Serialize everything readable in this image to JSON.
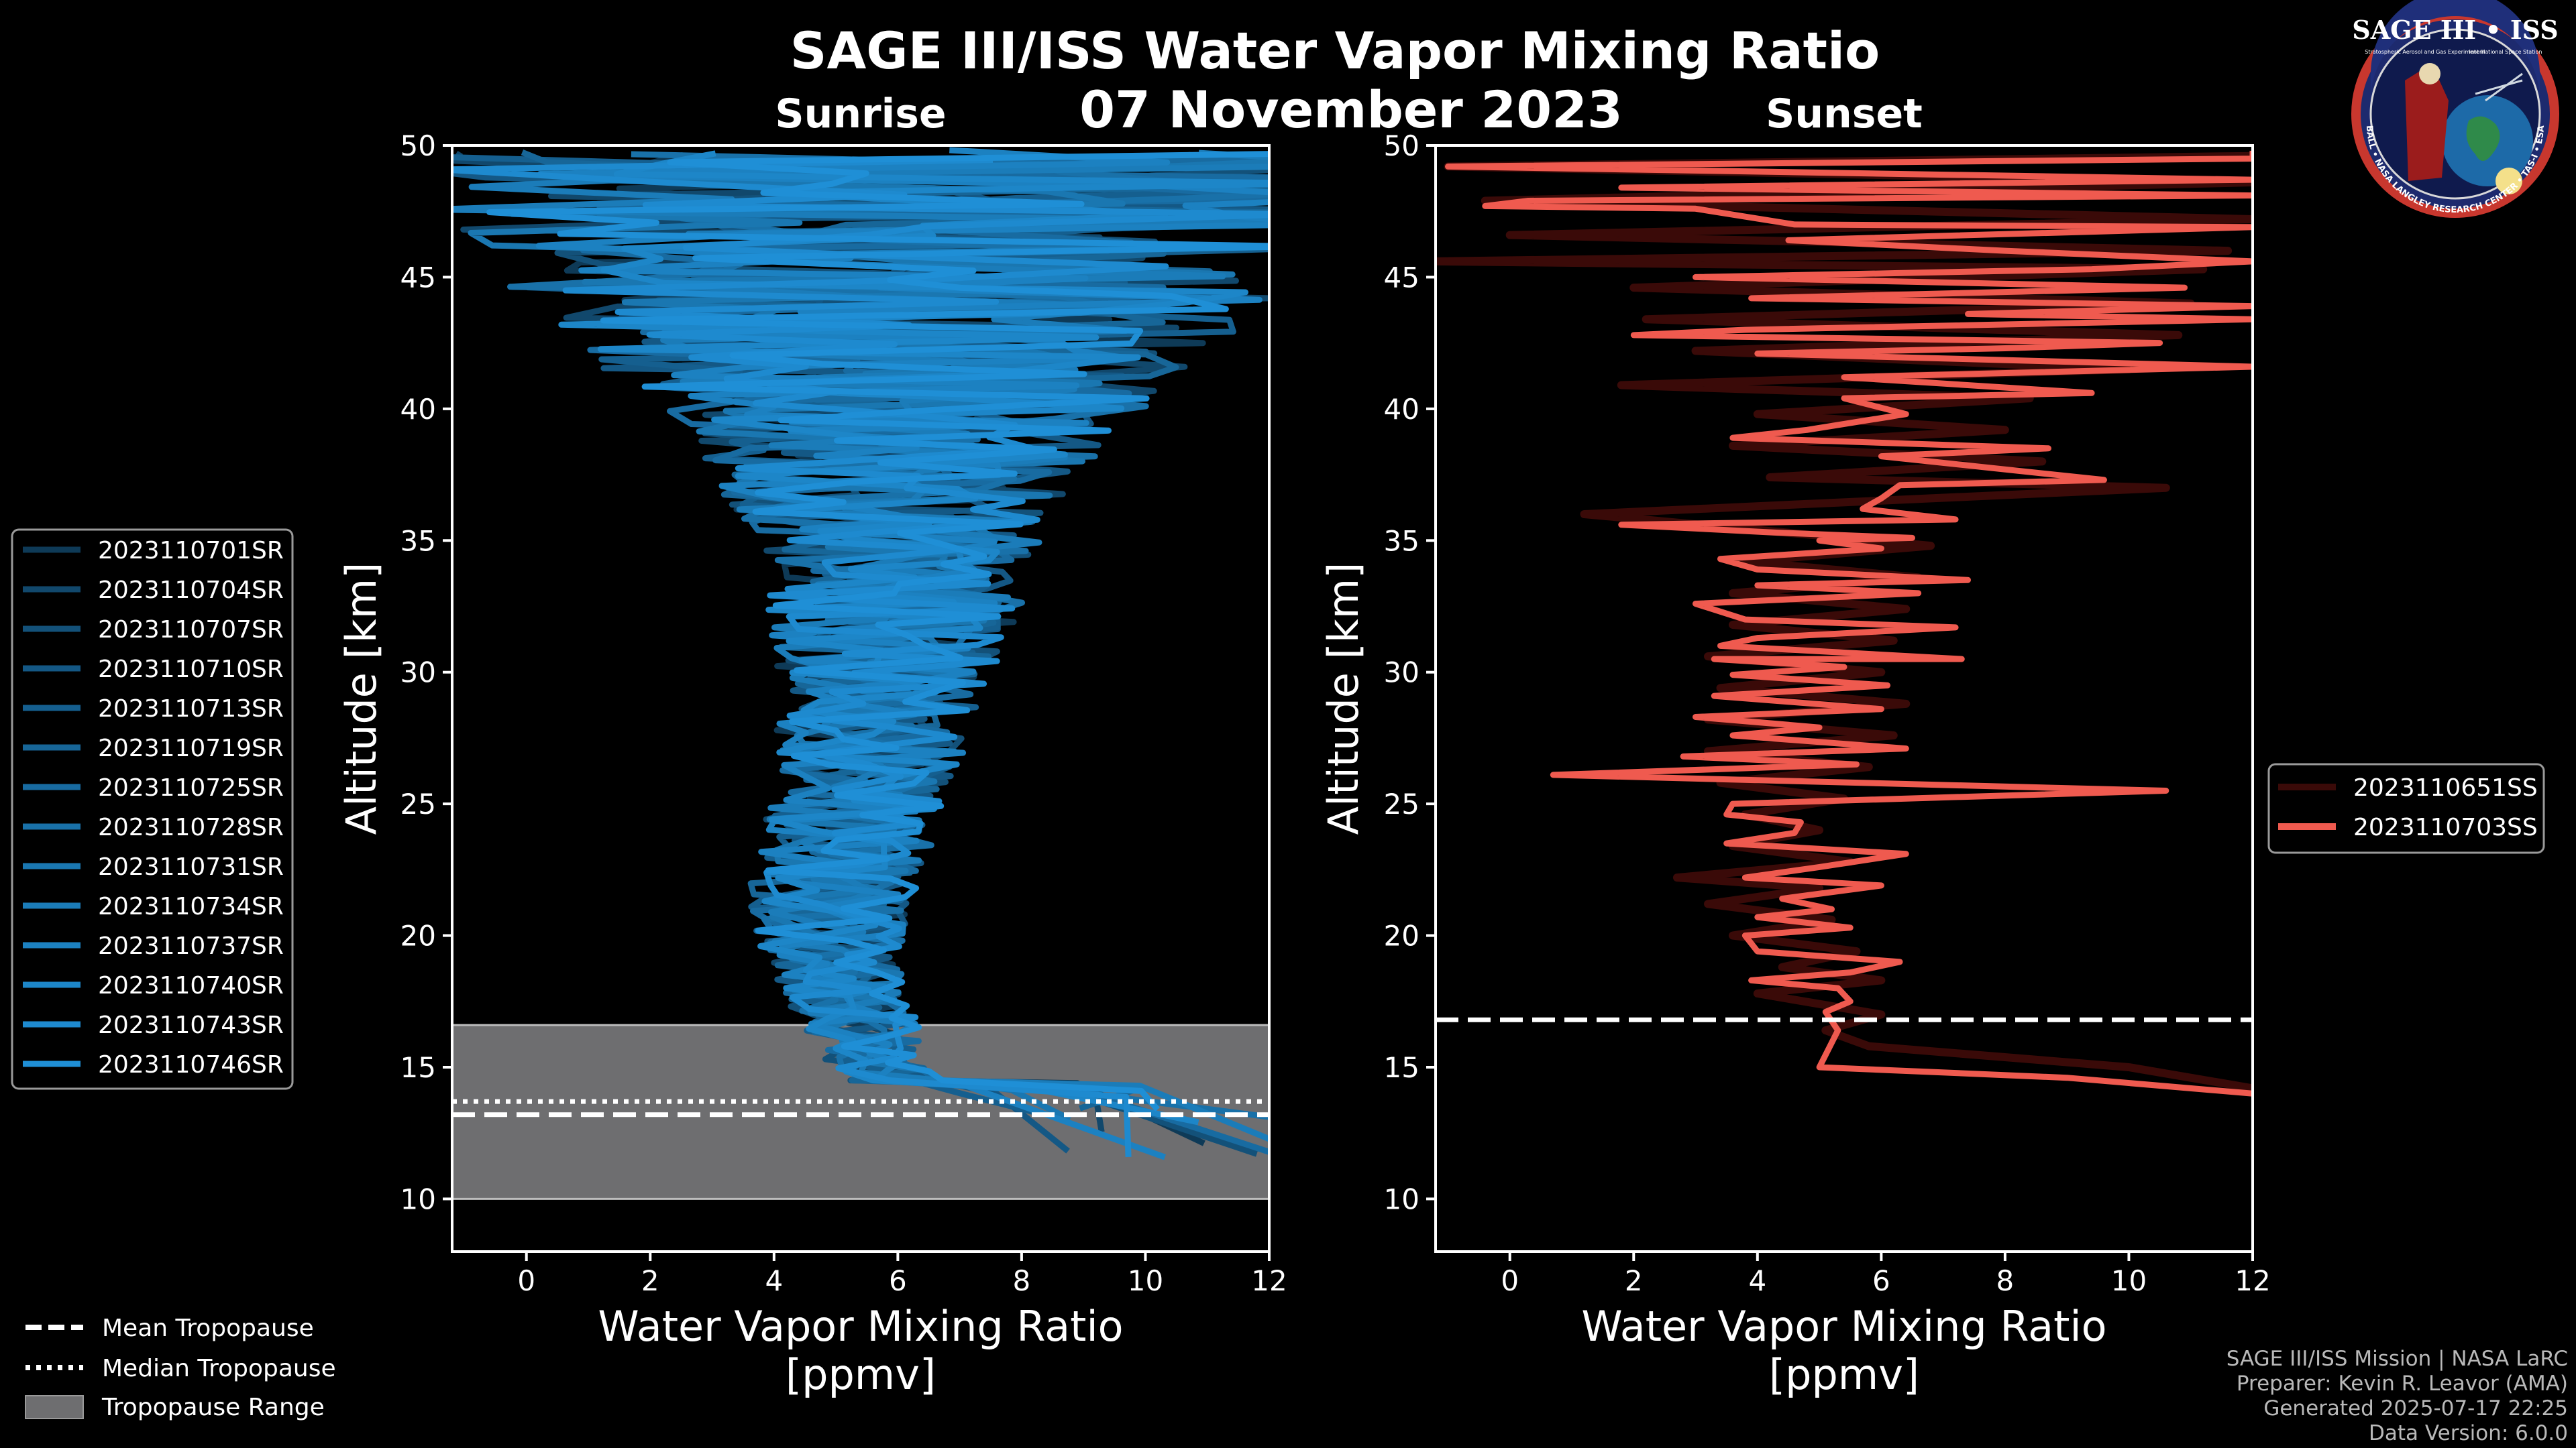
{
  "header": {
    "title": "SAGE III/ISS Water Vapor Mixing Ratio",
    "date": "07 November 2023",
    "left_label": "Sunrise",
    "right_label": "Sunset"
  },
  "logo": {
    "text": "SAGE III • ISS",
    "subtitle_left": "Stratospheric Aerosol and Gas Experiment III",
    "subtitle_right": "International Space Station",
    "ring_text": "BALL • NASA LANGLEY RESEARCH CENTER • TAS-I • ESA"
  },
  "colors": {
    "sunrise": "#1f8fd6",
    "sunrise_dark": "#0e3a57",
    "sunset": "#ef5a4f",
    "sunset_dark": "#3a0a08",
    "tropopause_fill": "#6e6e70",
    "background": "#000000"
  },
  "chart_data": [
    {
      "type": "line",
      "panel": "Sunrise",
      "xlabel": "Water Vapor Mixing Ratio",
      "xlabel2": "[ppmv]",
      "ylabel": "Altitude [km]",
      "xlim": [
        -1.2,
        12
      ],
      "ylim": [
        8,
        50
      ],
      "xticks": [
        0,
        2,
        4,
        6,
        8,
        10,
        12
      ],
      "yticks": [
        10,
        15,
        20,
        25,
        30,
        35,
        40,
        45,
        50
      ],
      "legend": [
        "2023110701SR",
        "2023110704SR",
        "2023110707SR",
        "2023110710SR",
        "2023110713SR",
        "2023110719SR",
        "2023110725SR",
        "2023110728SR",
        "2023110731SR",
        "2023110734SR",
        "2023110737SR",
        "2023110740SR",
        "2023110743SR",
        "2023110746SR"
      ],
      "profile_shape": {
        "altitudes": [
          12,
          13,
          14,
          15,
          16,
          17,
          18,
          19,
          20,
          21,
          22,
          23,
          24,
          25,
          26,
          27,
          28,
          29,
          30,
          31,
          32,
          33,
          34,
          35,
          36,
          37,
          38,
          39,
          40,
          41,
          42,
          43,
          44,
          45,
          46,
          47,
          48,
          49,
          49.8
        ],
        "mean_ppmv": [
          11.5,
          8,
          6.2,
          5.7,
          5.5,
          5.3,
          5.1,
          5.0,
          4.9,
          4.9,
          5.0,
          5.1,
          5.2,
          5.3,
          5.4,
          5.5,
          5.6,
          5.7,
          5.8,
          5.9,
          5.9,
          6.0,
          6.0,
          6.0,
          6.0,
          6.0,
          6.0,
          6.0,
          6.0,
          6.0,
          6.0,
          6.0,
          6.0,
          6.0,
          6.0,
          6.0,
          6.0,
          6.0,
          6.0
        ],
        "spread_ppmv": [
          1.0,
          1.0,
          0.8,
          0.8,
          0.9,
          1.0,
          1.0,
          1.1,
          1.2,
          1.3,
          1.4,
          1.4,
          1.4,
          1.5,
          1.5,
          1.6,
          1.6,
          1.7,
          1.8,
          1.9,
          2.0,
          2.1,
          2.2,
          2.4,
          2.6,
          2.9,
          3.2,
          3.6,
          4.0,
          4.5,
          5.0,
          5.5,
          6.0,
          6.5,
          7.0,
          7.5,
          8.0,
          8.5,
          9.0
        ]
      },
      "tropopause": {
        "mean_km": 13.2,
        "median_km": 13.7,
        "range_km": [
          10.0,
          16.6
        ]
      }
    },
    {
      "type": "line",
      "panel": "Sunset",
      "xlabel": "Water Vapor Mixing Ratio",
      "xlabel2": "[ppmv]",
      "ylabel": "Altitude [km]",
      "xlim": [
        -1.2,
        12
      ],
      "ylim": [
        8,
        50
      ],
      "xticks": [
        0,
        2,
        4,
        6,
        8,
        10,
        12
      ],
      "yticks": [
        10,
        15,
        20,
        25,
        30,
        35,
        40,
        45,
        50
      ],
      "legend": [
        "2023110651SS",
        "2023110703SS"
      ],
      "series": [
        {
          "name": "2023110703SS",
          "points": [
            [
              12,
              14.0
            ],
            [
              9.0,
              14.6
            ],
            [
              5.0,
              15.0
            ],
            [
              5.3,
              16.4
            ],
            [
              5.1,
              17.1
            ],
            [
              5.5,
              17.5
            ],
            [
              5.3,
              18.0
            ],
            [
              3.9,
              18.3
            ],
            [
              5.5,
              18.6
            ],
            [
              6.3,
              19.0
            ],
            [
              4.0,
              19.4
            ],
            [
              3.8,
              20.0
            ],
            [
              5.5,
              20.3
            ],
            [
              4.0,
              20.7
            ],
            [
              5.2,
              21.0
            ],
            [
              4.4,
              21.4
            ],
            [
              6.0,
              21.9
            ],
            [
              3.8,
              22.2
            ],
            [
              5.0,
              22.6
            ],
            [
              6.4,
              23.1
            ],
            [
              3.5,
              23.5
            ],
            [
              4.6,
              23.9
            ],
            [
              4.7,
              24.3
            ],
            [
              3.5,
              24.6
            ],
            [
              3.6,
              25.0
            ],
            [
              10.6,
              25.5
            ],
            [
              0.7,
              26.1
            ],
            [
              5.6,
              26.5
            ],
            [
              2.8,
              26.8
            ],
            [
              6.4,
              27.1
            ],
            [
              3.6,
              27.6
            ],
            [
              5.0,
              27.9
            ],
            [
              3.0,
              28.3
            ],
            [
              6.0,
              28.6
            ],
            [
              3.3,
              29.1
            ],
            [
              6.1,
              29.5
            ],
            [
              3.6,
              29.9
            ],
            [
              5.4,
              30.2
            ],
            [
              3.3,
              30.5
            ],
            [
              7.3,
              30.5
            ],
            [
              3.4,
              31.0
            ],
            [
              4.0,
              31.3
            ],
            [
              7.2,
              31.7
            ],
            [
              3.8,
              32.0
            ],
            [
              3.0,
              32.6
            ],
            [
              6.6,
              33.0
            ],
            [
              4.0,
              33.3
            ],
            [
              7.4,
              33.5
            ],
            [
              4.0,
              33.9
            ],
            [
              3.4,
              34.3
            ],
            [
              6.0,
              34.7
            ],
            [
              5.0,
              35.0
            ],
            [
              6.5,
              35.1
            ],
            [
              4.3,
              35.3
            ],
            [
              1.8,
              35.6
            ],
            [
              7.2,
              35.8
            ],
            [
              5.7,
              36.2
            ],
            [
              6.0,
              36.6
            ],
            [
              6.3,
              37.1
            ],
            [
              9.6,
              37.3
            ],
            [
              7.6,
              37.8
            ],
            [
              6.0,
              38.2
            ],
            [
              8.7,
              38.5
            ],
            [
              3.6,
              38.9
            ],
            [
              4.8,
              39.2
            ],
            [
              6.4,
              39.8
            ],
            [
              5.4,
              40.4
            ],
            [
              9.4,
              40.6
            ],
            [
              5.4,
              41.2
            ],
            [
              12,
              41.6
            ],
            [
              4.0,
              42.1
            ],
            [
              8.0,
              42.3
            ],
            [
              10.5,
              42.5
            ],
            [
              2.0,
              42.8
            ],
            [
              3.8,
              43.0
            ],
            [
              12,
              43.4
            ],
            [
              7.4,
              43.6
            ],
            [
              12,
              43.9
            ],
            [
              3.9,
              44.2
            ],
            [
              10.9,
              44.6
            ],
            [
              3.0,
              45.0
            ],
            [
              9.4,
              45.3
            ],
            [
              12,
              45.6
            ],
            [
              8.0,
              46.0
            ],
            [
              4.5,
              46.4
            ],
            [
              12,
              46.9
            ],
            [
              4.6,
              47.0
            ],
            [
              3.0,
              47.6
            ],
            [
              -0.4,
              47.7
            ],
            [
              0.3,
              47.9
            ],
            [
              12,
              48.1
            ],
            [
              1.8,
              48.4
            ],
            [
              12,
              48.7
            ],
            [
              -1.0,
              49.2
            ],
            [
              12,
              49.5
            ],
            [
              12,
              49.8
            ]
          ]
        },
        {
          "name": "2023110651SS",
          "points": [
            [
              12,
              14.2
            ],
            [
              10.0,
              15.0
            ],
            [
              5.8,
              15.8
            ],
            [
              5.1,
              16.4
            ],
            [
              6.0,
              17.0
            ],
            [
              5.0,
              17.4
            ],
            [
              4.0,
              17.8
            ],
            [
              6.0,
              18.3
            ],
            [
              4.4,
              18.8
            ],
            [
              5.6,
              19.4
            ],
            [
              3.6,
              20.0
            ],
            [
              5.2,
              20.6
            ],
            [
              3.2,
              21.2
            ],
            [
              5.0,
              21.8
            ],
            [
              2.7,
              22.2
            ],
            [
              5.5,
              22.8
            ],
            [
              3.6,
              23.4
            ],
            [
              5.0,
              24.0
            ],
            [
              3.8,
              24.6
            ],
            [
              5.4,
              25.2
            ],
            [
              3.4,
              25.8
            ],
            [
              5.8,
              26.4
            ],
            [
              3.2,
              27.0
            ],
            [
              6.2,
              27.6
            ],
            [
              3.2,
              28.2
            ],
            [
              6.4,
              28.8
            ],
            [
              3.4,
              29.4
            ],
            [
              6.0,
              30.0
            ],
            [
              3.2,
              30.6
            ],
            [
              6.2,
              31.2
            ],
            [
              3.6,
              31.8
            ],
            [
              6.4,
              32.4
            ],
            [
              3.6,
              33.0
            ],
            [
              6.6,
              33.6
            ],
            [
              3.8,
              34.2
            ],
            [
              6.8,
              34.8
            ],
            [
              1.2,
              36.0
            ],
            [
              6.8,
              36.6
            ],
            [
              10.6,
              37.0
            ],
            [
              4.2,
              37.4
            ],
            [
              8.6,
              38.0
            ],
            [
              3.6,
              38.6
            ],
            [
              8.0,
              39.2
            ],
            [
              4.0,
              39.8
            ],
            [
              8.4,
              40.4
            ],
            [
              1.8,
              40.9
            ],
            [
              10.0,
              41.5
            ],
            [
              3.0,
              42.2
            ],
            [
              10.8,
              42.8
            ],
            [
              2.2,
              43.4
            ],
            [
              11.0,
              44.0
            ],
            [
              2.0,
              44.6
            ],
            [
              11.2,
              45.3
            ],
            [
              -1.2,
              45.6
            ],
            [
              11.6,
              46.0
            ],
            [
              0.0,
              46.6
            ],
            [
              12,
              47.2
            ],
            [
              -0.4,
              47.9
            ],
            [
              12,
              48.6
            ],
            [
              -1.0,
              49.2
            ],
            [
              12,
              49.6
            ]
          ]
        }
      ],
      "tropopause": {
        "mean_km": 16.8,
        "median_km": 16.8
      }
    }
  ],
  "bottom_legend": {
    "mean": "Mean Tropopause",
    "median": "Median Tropopause",
    "range": "Tropopause Range"
  },
  "credits": {
    "line1": "SAGE III/ISS Mission | NASA LaRC",
    "line2": "Preparer: Kevin R. Leavor (AMA)",
    "line3": "Generated 2025-07-17 22:25",
    "line4": "Data Version: 6.0.0"
  }
}
